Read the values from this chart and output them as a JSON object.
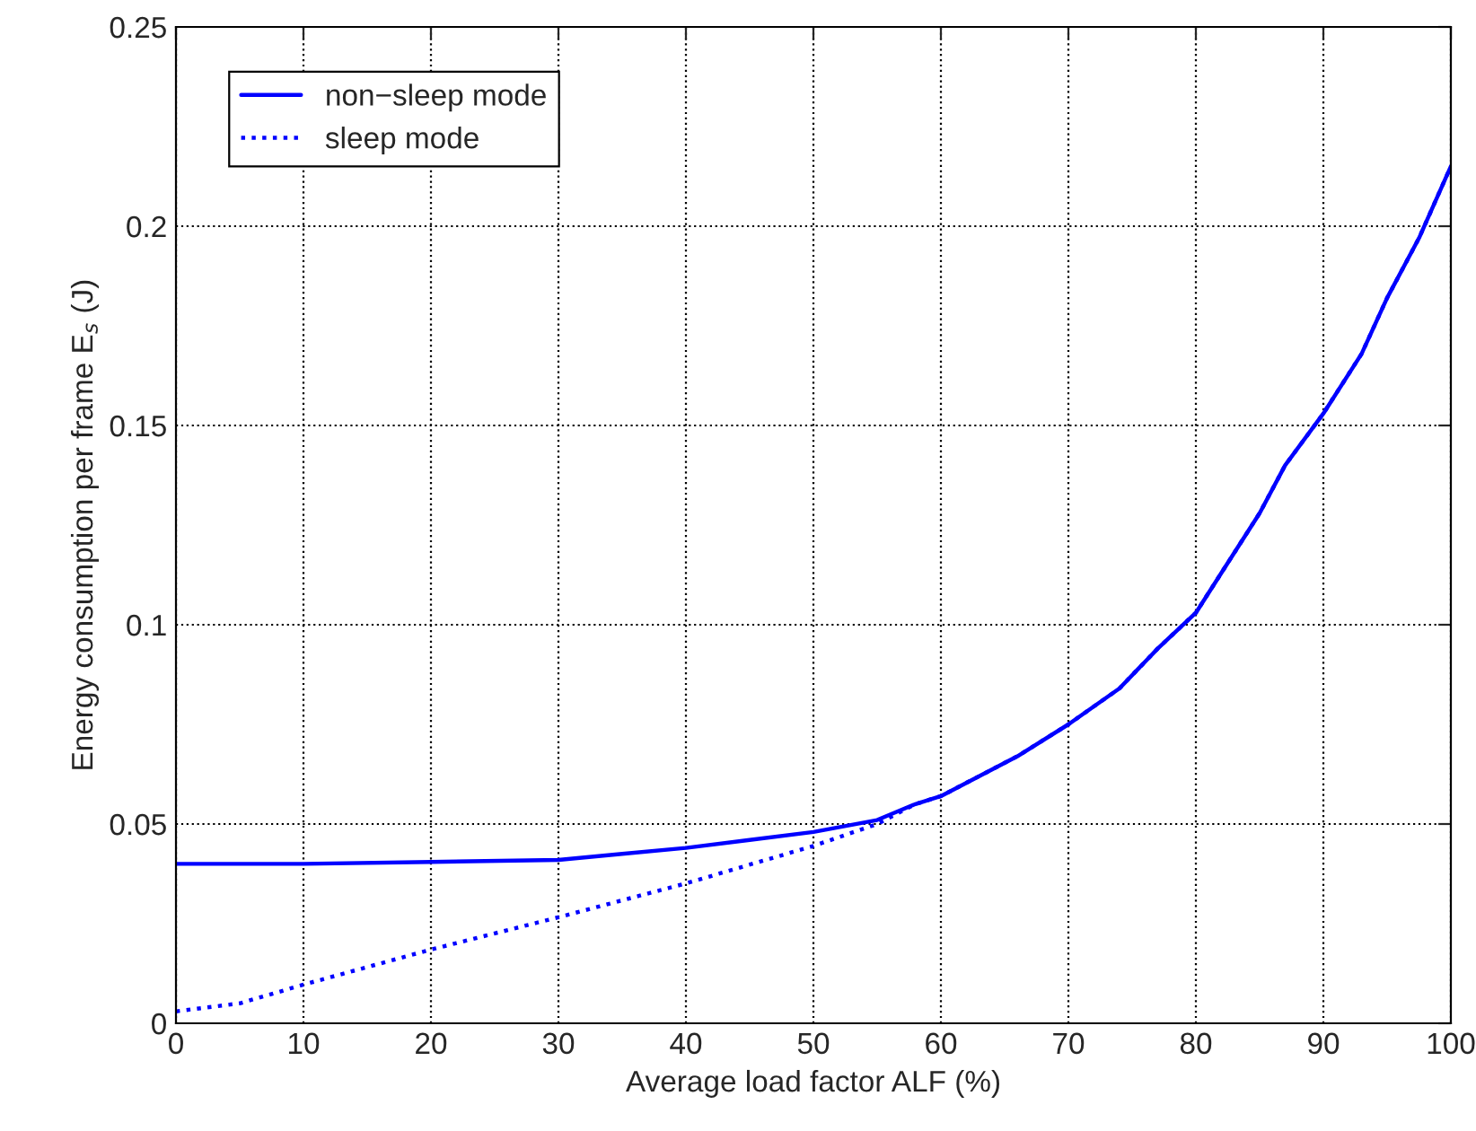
{
  "chart_data": {
    "type": "line",
    "xlabel": "Average load factor ALF (%)",
    "ylabel": "Energy consumption per frame E$_{s}$ (J)",
    "xlim": [
      0,
      100
    ],
    "ylim": [
      0,
      0.25
    ],
    "xticks": [
      0,
      10,
      20,
      30,
      40,
      50,
      60,
      70,
      80,
      90,
      100
    ],
    "yticks": [
      0,
      0.05,
      0.1,
      0.15,
      0.2,
      0.25
    ],
    "grid": true,
    "legend": "top left",
    "series": [
      {
        "name": "non−sleep mode",
        "color": "#0000ff",
        "line_style": "solid",
        "x": [
          0,
          10,
          20,
          30,
          35,
          40,
          45,
          50,
          55,
          58,
          60,
          63,
          66,
          70,
          74,
          77,
          80,
          82,
          85,
          87,
          90,
          93,
          95,
          97.5,
          100
        ],
        "values": [
          0.04,
          0.04,
          0.0405,
          0.041,
          0.0425,
          0.044,
          0.046,
          0.048,
          0.051,
          0.055,
          0.057,
          0.062,
          0.067,
          0.075,
          0.084,
          0.094,
          0.103,
          0.113,
          0.128,
          0.14,
          0.153,
          0.168,
          0.182,
          0.197,
          0.215
        ]
      },
      {
        "name": "sleep mode",
        "color": "#0000ff",
        "line_style": "dotted",
        "x": [
          0,
          5,
          10,
          20,
          30,
          40,
          50,
          55,
          58,
          60,
          63,
          66,
          70,
          74,
          77,
          80,
          82,
          85,
          87,
          90,
          93,
          95,
          97.5,
          100
        ],
        "values": [
          0.003,
          0.005,
          0.0097,
          0.0185,
          0.0266,
          0.0351,
          0.0445,
          0.05,
          0.055,
          0.057,
          0.062,
          0.067,
          0.075,
          0.084,
          0.094,
          0.103,
          0.113,
          0.128,
          0.14,
          0.153,
          0.168,
          0.182,
          0.197,
          0.215
        ]
      }
    ]
  }
}
